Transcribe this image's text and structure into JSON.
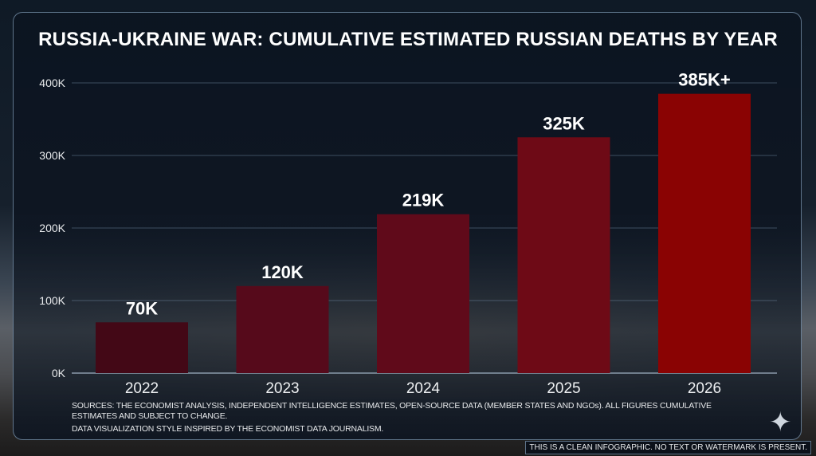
{
  "chart_data": {
    "type": "bar",
    "title": "RUSSIA-UKRAINE WAR: CUMULATIVE ESTIMATED RUSSIAN DEATHS BY YEAR",
    "xlabel": "",
    "ylabel": "",
    "categories": [
      "2022",
      "2023",
      "2024",
      "2025",
      "2026"
    ],
    "values": [
      70000,
      120000,
      219000,
      325000,
      385000
    ],
    "data_labels": [
      "70K",
      "120K",
      "219K",
      "325K",
      "385K+"
    ],
    "ylim": [
      0,
      400000
    ],
    "yticks": [
      0,
      100000,
      200000,
      300000,
      400000
    ],
    "ytick_labels": [
      "0K",
      "100K",
      "200K",
      "300K",
      "400K"
    ],
    "grid": true,
    "bar_colors": [
      "#430816",
      "#560a1b",
      "#600a1a",
      "#6e0a16",
      "#8a0303"
    ]
  },
  "sources": "SOURCES: THE ECONOMIST ANALYSIS, INDEPENDENT INTELLIGENCE ESTIMATES, OPEN-SOURCE DATA (MEMBER STATES AND NGOs). ALL FIGURES CUMULATIVE ESTIMATES AND SUBJECT TO CHANGE.",
  "credit": "DATA VISUALIZATION STYLE INSPIRED BY THE ECONOMIST DATA JOURNALISM.",
  "watermark_note": "THIS IS A CLEAN INFOGRAPHIC. NO TEXT OR WATERMARK IS PRESENT."
}
